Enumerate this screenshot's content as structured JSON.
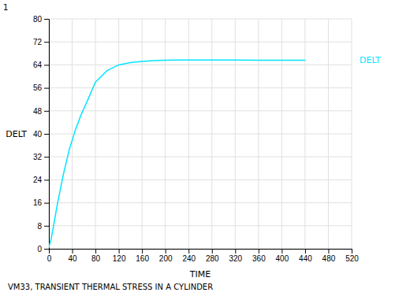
{
  "chart_data": {
    "type": "line",
    "xlabel": "TIME",
    "ylabel": "DELT",
    "x": [
      0,
      4,
      8,
      15,
      25,
      35,
      45,
      55,
      65,
      80,
      100,
      120,
      140,
      160,
      180,
      200,
      220,
      240,
      280,
      320,
      360,
      400,
      440
    ],
    "series": [
      {
        "name": "DELT",
        "color": "#00E5FF",
        "values": [
          0.5,
          3.5,
          8.0,
          16.0,
          26.0,
          34.5,
          41.0,
          46.5,
          51.0,
          58.0,
          62.0,
          64.0,
          64.8,
          65.2,
          65.5,
          65.6,
          65.7,
          65.7,
          65.7,
          65.7,
          65.6,
          65.6,
          65.6
        ]
      }
    ],
    "xlim": [
      0,
      520
    ],
    "ylim": [
      0,
      80
    ],
    "xticks": [
      0,
      40,
      80,
      120,
      160,
      200,
      240,
      280,
      320,
      360,
      400,
      440,
      480,
      520
    ],
    "yticks": [
      0,
      8,
      16,
      24,
      32,
      40,
      48,
      56,
      64,
      72,
      80
    ],
    "grid": true,
    "legend": "right",
    "annotations": [
      "VM33, TRANSIENT THERMAL STRESS IN A CYLINDER",
      "1"
    ]
  }
}
